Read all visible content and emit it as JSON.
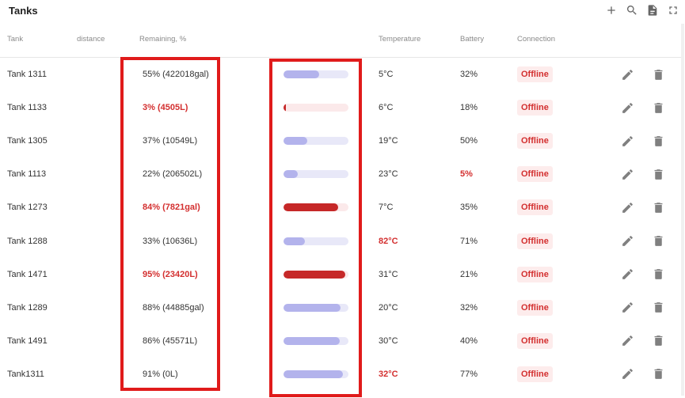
{
  "header": {
    "title": "Tanks"
  },
  "columns": {
    "tank": "Tank",
    "distance": "distance",
    "remaining": "Remaining, %",
    "temperature": "Temperature",
    "battery": "Battery",
    "connection": "Connection"
  },
  "colors": {
    "alert": "#d32f2f",
    "bar_normal": "#b3b3ec",
    "bar_alert": "#c62828",
    "highlight": "#e01b1b"
  },
  "rows": [
    {
      "name": "Tank 1311",
      "remaining": "55% (422018gal)",
      "level": 0.55,
      "level_alert": false,
      "remaining_alert": false,
      "temperature": "5°C",
      "temp_alert": false,
      "battery": "32%",
      "battery_alert": false,
      "connection": "Offline"
    },
    {
      "name": "Tank 1133",
      "remaining": "3% (4505L)",
      "level": 0.03,
      "level_alert": true,
      "remaining_alert": true,
      "temperature": "6°C",
      "temp_alert": false,
      "battery": "18%",
      "battery_alert": false,
      "connection": "Offline"
    },
    {
      "name": "Tank 1305",
      "remaining": "37% (10549L)",
      "level": 0.37,
      "level_alert": false,
      "remaining_alert": false,
      "temperature": "19°C",
      "temp_alert": false,
      "battery": "50%",
      "battery_alert": false,
      "connection": "Offline"
    },
    {
      "name": "Tank 1113",
      "remaining": "22% (206502L)",
      "level": 0.22,
      "level_alert": false,
      "remaining_alert": false,
      "temperature": "23°C",
      "temp_alert": false,
      "battery": "5%",
      "battery_alert": true,
      "connection": "Offline"
    },
    {
      "name": "Tank 1273",
      "remaining": "84% (7821gal)",
      "level": 0.84,
      "level_alert": true,
      "remaining_alert": true,
      "temperature": "7°C",
      "temp_alert": false,
      "battery": "35%",
      "battery_alert": false,
      "connection": "Offline"
    },
    {
      "name": "Tank 1288",
      "remaining": "33% (10636L)",
      "level": 0.33,
      "level_alert": false,
      "remaining_alert": false,
      "temperature": "82°C",
      "temp_alert": true,
      "battery": "71%",
      "battery_alert": false,
      "connection": "Offline"
    },
    {
      "name": "Tank 1471",
      "remaining": "95% (23420L)",
      "level": 0.95,
      "level_alert": true,
      "remaining_alert": true,
      "temperature": "31°C",
      "temp_alert": false,
      "battery": "21%",
      "battery_alert": false,
      "connection": "Offline"
    },
    {
      "name": "Tank 1289",
      "remaining": "88% (44885gal)",
      "level": 0.88,
      "level_alert": false,
      "remaining_alert": false,
      "temperature": "20°C",
      "temp_alert": false,
      "battery": "32%",
      "battery_alert": false,
      "connection": "Offline"
    },
    {
      "name": "Tank 1491",
      "remaining": "86% (45571L)",
      "level": 0.86,
      "level_alert": false,
      "remaining_alert": false,
      "temperature": "30°C",
      "temp_alert": false,
      "battery": "40%",
      "battery_alert": false,
      "connection": "Offline"
    },
    {
      "name": "Tank1311",
      "remaining": "91% (0L)",
      "level": 0.91,
      "level_alert": false,
      "remaining_alert": false,
      "temperature": "32°C",
      "temp_alert": true,
      "battery": "77%",
      "battery_alert": false,
      "connection": "Offline"
    }
  ]
}
